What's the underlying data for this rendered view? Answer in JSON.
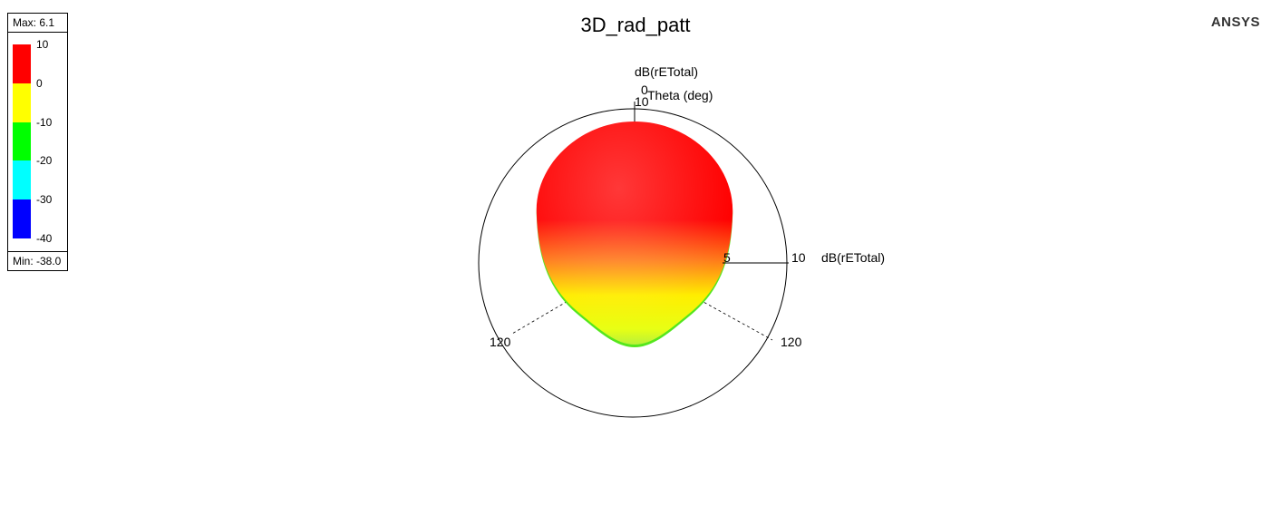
{
  "title": "3D_rad_patt",
  "brand": "ANSYS",
  "legend": {
    "max_label": "Max: 6.1",
    "min_label": "Min: -38.0",
    "ticks": [
      "10",
      "0",
      "-10",
      "-20",
      "-30",
      "-40"
    ],
    "colors": [
      "#ff0000",
      "#ffff00",
      "#00ff00",
      "#00ffff",
      "#0000ff"
    ]
  },
  "axes": {
    "z_quantity": "dB(rETotal)",
    "z_tick_small": "0",
    "z_tick_large": "10",
    "theta_label": "Theta (deg)",
    "x_tick_small": "5",
    "x_tick_large": "10",
    "x_quantity": "dB(rETotal)",
    "theta_left": "120",
    "theta_right": "120"
  },
  "chart_data": {
    "type": "3d-radiation-pattern",
    "title": "3D_rad_patt",
    "quantity": "dB(rETotal)",
    "max_db": 6.1,
    "min_db": -38.0,
    "colorbar_ticks": [
      10,
      0,
      -10,
      -20,
      -30,
      -40
    ],
    "colorbar_colors": [
      "#ff0000",
      "#ffff00",
      "#00ff00",
      "#00ffff",
      "#0000ff"
    ],
    "theta_marks_deg": [
      0,
      120,
      120
    ],
    "radial_marks_db": [
      0,
      5,
      10
    ]
  }
}
